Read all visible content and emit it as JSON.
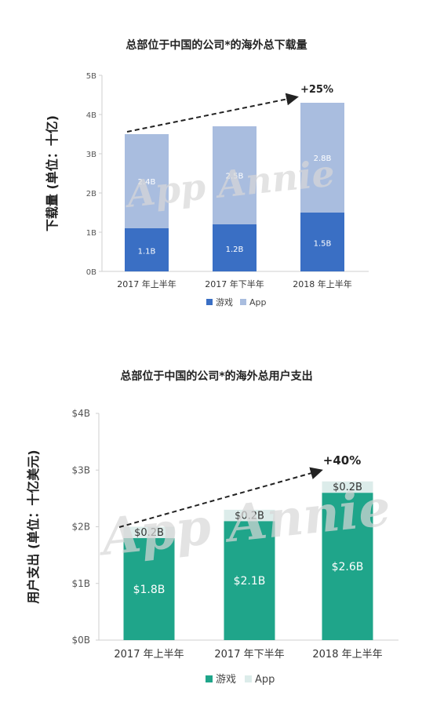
{
  "chart_data": [
    {
      "type": "bar",
      "stacked": true,
      "title": "总部位于中国的公司*的海外总下载量",
      "ylabel": "下载量 (单位：十亿)",
      "xlabel": "",
      "categories": [
        "2017 年上半年",
        "2017 年下半年",
        "2018 年上半年"
      ],
      "series": [
        {
          "name": "游戏",
          "values": [
            1.1,
            1.2,
            1.5
          ],
          "labels": [
            "1.1B",
            "1.2B",
            "1.5B"
          ],
          "color": "#3a6fc4"
        },
        {
          "name": "App",
          "values": [
            2.4,
            2.5,
            2.8
          ],
          "labels": [
            "2.4B",
            "2.5B",
            "2.8B"
          ],
          "color": "#a9bddf"
        }
      ],
      "yticks": [
        "0B",
        "1B",
        "2B",
        "3B",
        "4B",
        "5B"
      ],
      "ylim": [
        0,
        5
      ],
      "growth_label": "+25%",
      "watermark": "App Annie",
      "legend_position": "bottom"
    },
    {
      "type": "bar",
      "stacked": true,
      "title": "总部位于中国的公司*的海外总用户支出",
      "ylabel": "用户支出 (单位：十亿美元)",
      "xlabel": "",
      "categories": [
        "2017 年上半年",
        "2017 年下半年",
        "2018 年上半年"
      ],
      "series": [
        {
          "name": "游戏",
          "values": [
            1.8,
            2.1,
            2.6
          ],
          "labels": [
            "$1.8B",
            "$2.1B",
            "$2.6B"
          ],
          "color": "#1fa58a"
        },
        {
          "name": "App",
          "values": [
            0.2,
            0.2,
            0.2
          ],
          "labels": [
            "$0.2B",
            "$0.2B",
            "$0.2B"
          ],
          "color": "#dcecea"
        }
      ],
      "yticks": [
        "$0B",
        "$1B",
        "$2B",
        "$3B",
        "$4B"
      ],
      "ylim": [
        0,
        4
      ],
      "growth_label": "+40%",
      "watermark": "App Annie",
      "legend_position": "bottom"
    }
  ]
}
